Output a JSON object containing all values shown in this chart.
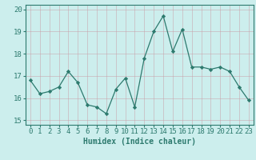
{
  "x": [
    0,
    1,
    2,
    3,
    4,
    5,
    6,
    7,
    8,
    9,
    10,
    11,
    12,
    13,
    14,
    15,
    16,
    17,
    18,
    19,
    20,
    21,
    22,
    23
  ],
  "y": [
    16.8,
    16.2,
    16.3,
    16.5,
    17.2,
    16.7,
    15.7,
    15.6,
    15.3,
    16.4,
    16.9,
    15.6,
    17.8,
    19.0,
    19.7,
    18.1,
    19.1,
    17.4,
    17.4,
    17.3,
    17.4,
    17.2,
    16.5,
    15.9
  ],
  "line_color": "#2d7a6e",
  "marker": "D",
  "marker_size": 2.2,
  "bg_color": "#cceeed",
  "grid_color": "#b0d8d8",
  "bottom_bar_color": "#4aada0",
  "xlabel": "Humidex (Indice chaleur)",
  "xlim": [
    -0.5,
    23.5
  ],
  "ylim": [
    14.8,
    20.2
  ],
  "xticks": [
    0,
    1,
    2,
    3,
    4,
    5,
    6,
    7,
    8,
    9,
    10,
    11,
    12,
    13,
    14,
    15,
    16,
    17,
    18,
    19,
    20,
    21,
    22,
    23
  ],
  "yticks": [
    15,
    16,
    17,
    18,
    19,
    20
  ],
  "xlabel_fontsize": 7,
  "tick_fontsize": 6.5,
  "axis_color": "#2d7a6e"
}
